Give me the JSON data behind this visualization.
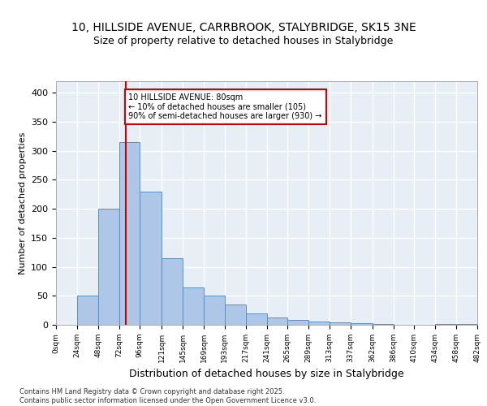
{
  "title_line1": "10, HILLSIDE AVENUE, CARRBROOK, STALYBRIDGE, SK15 3NE",
  "title_line2": "Size of property relative to detached houses in Stalybridge",
  "xlabel": "Distribution of detached houses by size in Stalybridge",
  "ylabel": "Number of detached properties",
  "bar_color": "#aec6e8",
  "bar_edge_color": "#5a8fc0",
  "background_color": "#e8eef6",
  "grid_color": "#ffffff",
  "vline_color": "#cc0000",
  "vline_x": 80,
  "annotation_text": "10 HILLSIDE AVENUE: 80sqm\n← 10% of detached houses are smaller (105)\n90% of semi-detached houses are larger (930) →",
  "annotation_box_color": "#ffffff",
  "annotation_edge_color": "#cc0000",
  "footer_text": "Contains HM Land Registry data © Crown copyright and database right 2025.\nContains public sector information licensed under the Open Government Licence v3.0.",
  "bin_edges": [
    0,
    24,
    48,
    72,
    96,
    121,
    145,
    169,
    193,
    217,
    241,
    265,
    289,
    313,
    337,
    362,
    386,
    410,
    434,
    458,
    482
  ],
  "bin_labels": [
    "0sqm",
    "24sqm",
    "48sqm",
    "72sqm",
    "96sqm",
    "121sqm",
    "145sqm",
    "169sqm",
    "193sqm",
    "217sqm",
    "241sqm",
    "265sqm",
    "289sqm",
    "313sqm",
    "337sqm",
    "362sqm",
    "386sqm",
    "410sqm",
    "434sqm",
    "458sqm",
    "482sqm"
  ],
  "values": [
    0,
    50,
    200,
    315,
    230,
    115,
    65,
    50,
    35,
    20,
    12,
    8,
    5,
    4,
    3,
    1,
    0,
    0,
    1,
    1
  ],
  "ylim": [
    0,
    420
  ],
  "yticks": [
    0,
    50,
    100,
    150,
    200,
    250,
    300,
    350,
    400
  ]
}
